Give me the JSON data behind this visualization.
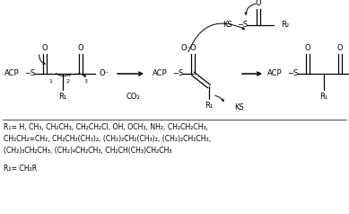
{
  "background_color": "#ffffff",
  "figsize": [
    3.89,
    2.38
  ],
  "dpi": 100,
  "r1_line1": "R₁= H, CH₃, CH₂CH₃, CH₂CH₂Cl, OH, OCH₃, NH₂, CH₂CH₂CH₃,",
  "r1_line2": "CH₂CH₂=CH₂, CH₂CH₂(CH₃)₂, (CH₂)₂CH₂(CH₃)₂, (CH₂)₂CH₂CH₃,",
  "r1_line3": "(CH₂)₃CH₂CH₃, (CH₂)₄CH₂CH₃, CH₂CH(CH₃)CH₂CH₃",
  "r2_line": "R₂= CH₂R"
}
